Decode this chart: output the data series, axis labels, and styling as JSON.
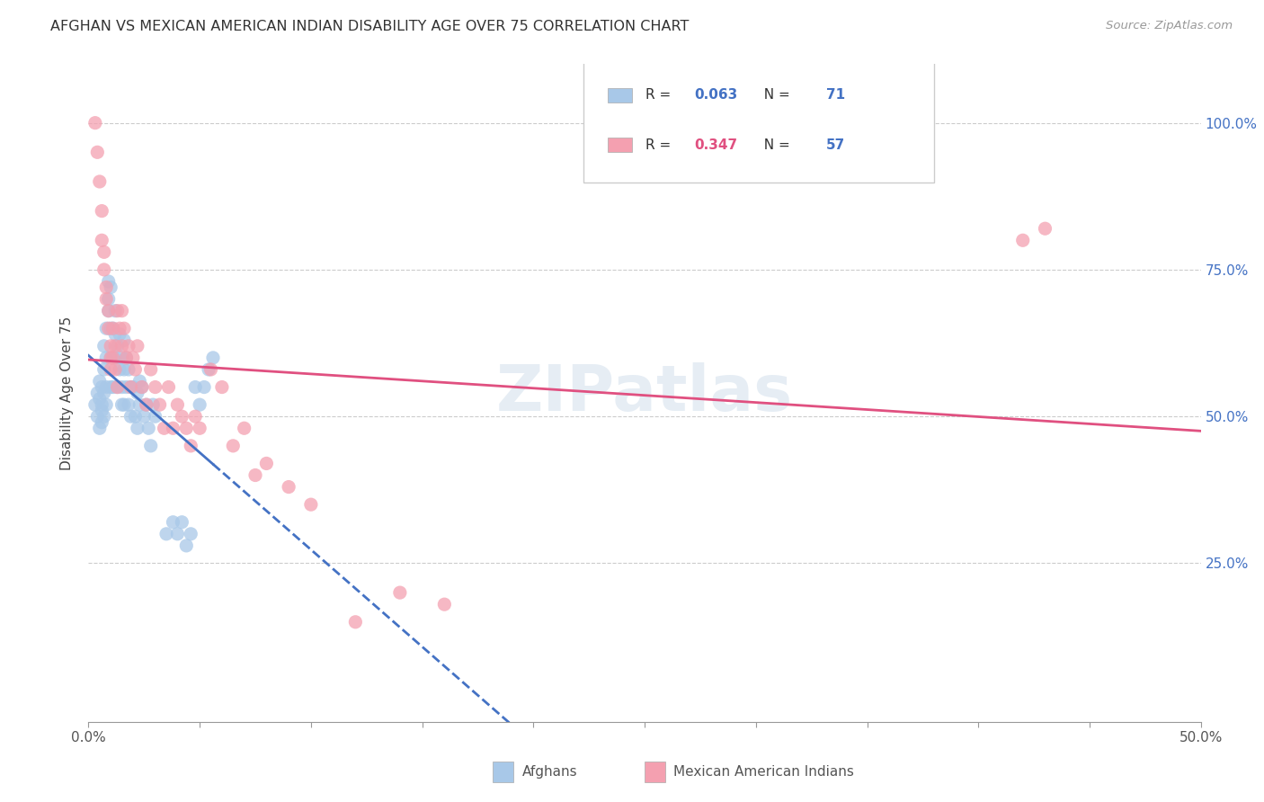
{
  "title": "AFGHAN VS MEXICAN AMERICAN INDIAN DISABILITY AGE OVER 75 CORRELATION CHART",
  "source": "Source: ZipAtlas.com",
  "ylabel": "Disability Age Over 75",
  "afghan_color": "#a8c8e8",
  "mexican_color": "#f4a0b0",
  "afghan_line_color": "#4472c4",
  "mexican_line_color": "#e05080",
  "background_color": "#ffffff",
  "watermark": "ZIPatlas",
  "xlim": [
    0.0,
    0.5
  ],
  "ylim": [
    -0.02,
    1.1
  ],
  "right_yticks": [
    1.0,
    0.75,
    0.5,
    0.25
  ],
  "right_ytick_labels": [
    "100.0%",
    "75.0%",
    "50.0%",
    "25.0%"
  ],
  "afghan_r": "0.063",
  "afghan_n": "71",
  "mexican_r": "0.347",
  "mexican_n": "57",
  "r_color": "#4472c4",
  "n_color": "#4472c4",
  "legend_box_color": "#e8e8e8",
  "afghan_x": [
    0.003,
    0.004,
    0.004,
    0.005,
    0.005,
    0.005,
    0.006,
    0.006,
    0.006,
    0.006,
    0.007,
    0.007,
    0.007,
    0.007,
    0.008,
    0.008,
    0.008,
    0.008,
    0.009,
    0.009,
    0.009,
    0.01,
    0.01,
    0.01,
    0.01,
    0.011,
    0.011,
    0.011,
    0.012,
    0.012,
    0.012,
    0.013,
    0.013,
    0.014,
    0.014,
    0.015,
    0.015,
    0.015,
    0.016,
    0.016,
    0.016,
    0.017,
    0.017,
    0.018,
    0.018,
    0.019,
    0.019,
    0.02,
    0.021,
    0.022,
    0.022,
    0.023,
    0.023,
    0.024,
    0.025,
    0.026,
    0.027,
    0.028,
    0.029,
    0.03,
    0.035,
    0.038,
    0.04,
    0.042,
    0.044,
    0.046,
    0.048,
    0.05,
    0.052,
    0.054,
    0.056
  ],
  "afghan_y": [
    0.52,
    0.5,
    0.54,
    0.48,
    0.53,
    0.56,
    0.49,
    0.52,
    0.55,
    0.51,
    0.54,
    0.58,
    0.5,
    0.62,
    0.52,
    0.6,
    0.65,
    0.55,
    0.7,
    0.68,
    0.73,
    0.55,
    0.6,
    0.65,
    0.72,
    0.6,
    0.65,
    0.55,
    0.6,
    0.64,
    0.68,
    0.55,
    0.62,
    0.58,
    0.64,
    0.52,
    0.6,
    0.55,
    0.58,
    0.52,
    0.63,
    0.55,
    0.6,
    0.58,
    0.52,
    0.55,
    0.5,
    0.55,
    0.5,
    0.54,
    0.48,
    0.52,
    0.56,
    0.55,
    0.5,
    0.52,
    0.48,
    0.45,
    0.52,
    0.5,
    0.3,
    0.32,
    0.3,
    0.32,
    0.28,
    0.3,
    0.55,
    0.52,
    0.55,
    0.58,
    0.6
  ],
  "mexican_x": [
    0.003,
    0.004,
    0.005,
    0.006,
    0.006,
    0.007,
    0.007,
    0.008,
    0.008,
    0.009,
    0.009,
    0.01,
    0.01,
    0.01,
    0.011,
    0.011,
    0.012,
    0.012,
    0.013,
    0.013,
    0.014,
    0.015,
    0.015,
    0.016,
    0.017,
    0.018,
    0.019,
    0.02,
    0.021,
    0.022,
    0.024,
    0.026,
    0.028,
    0.03,
    0.032,
    0.034,
    0.036,
    0.038,
    0.04,
    0.042,
    0.044,
    0.046,
    0.048,
    0.05,
    0.055,
    0.06,
    0.065,
    0.07,
    0.075,
    0.08,
    0.09,
    0.1,
    0.12,
    0.14,
    0.16,
    0.42,
    0.43
  ],
  "mexican_y": [
    1.0,
    0.95,
    0.9,
    0.85,
    0.8,
    0.78,
    0.75,
    0.72,
    0.7,
    0.68,
    0.65,
    0.62,
    0.6,
    0.58,
    0.6,
    0.65,
    0.62,
    0.58,
    0.55,
    0.68,
    0.65,
    0.62,
    0.68,
    0.65,
    0.6,
    0.62,
    0.55,
    0.6,
    0.58,
    0.62,
    0.55,
    0.52,
    0.58,
    0.55,
    0.52,
    0.48,
    0.55,
    0.48,
    0.52,
    0.5,
    0.48,
    0.45,
    0.5,
    0.48,
    0.58,
    0.55,
    0.45,
    0.48,
    0.4,
    0.42,
    0.38,
    0.35,
    0.15,
    0.2,
    0.18,
    0.8,
    0.82
  ]
}
